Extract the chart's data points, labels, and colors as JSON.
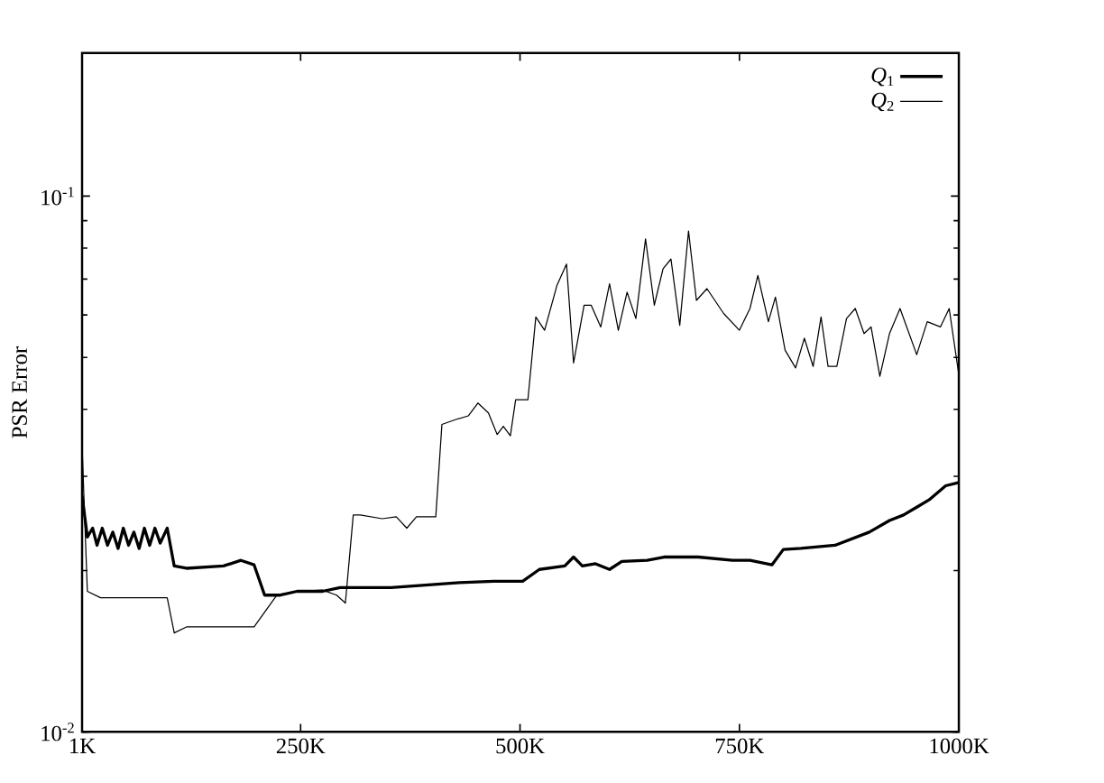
{
  "chart_data": {
    "type": "line",
    "ylabel": "PSR Error",
    "log": "y",
    "legend": "top right",
    "marker": "none",
    "line_style": "solid",
    "grid": false,
    "xlim": [
      1,
      1000
    ],
    "ylim": [
      0.01,
      0.185
    ],
    "xticks": [
      {
        "value": 1,
        "label": "1K"
      },
      {
        "value": 250,
        "label": "250K"
      },
      {
        "value": 500,
        "label": "500K"
      },
      {
        "value": 750,
        "label": "750K"
      },
      {
        "value": 1000,
        "label": "1000K"
      }
    ],
    "yticks": [
      {
        "value": 0.01,
        "label": "10$^{-2}$"
      },
      {
        "value": 0.1,
        "label": "10$^{-1}$"
      }
    ],
    "series": [
      {
        "name": "*Q*$_{1}$",
        "color": "#000000",
        "x": [
          1,
          7,
          13,
          18,
          24,
          30,
          36,
          42,
          48,
          54,
          60,
          66,
          72,
          78,
          84,
          90,
          98,
          106,
          120,
          162,
          182,
          197,
          209,
          227,
          246,
          275,
          295,
          314,
          353,
          392,
          431,
          470,
          503,
          522,
          551,
          561,
          571,
          586,
          602,
          616,
          645,
          664,
          703,
          742,
          762,
          787,
          800,
          820,
          859,
          898,
          921,
          937,
          966,
          985,
          1000
        ],
        "values": [
          0.0276,
          0.0231,
          0.024,
          0.0223,
          0.024,
          0.0223,
          0.0236,
          0.022,
          0.024,
          0.0223,
          0.0236,
          0.022,
          0.024,
          0.0223,
          0.024,
          0.0225,
          0.024,
          0.0204,
          0.0202,
          0.0204,
          0.0209,
          0.0205,
          0.018,
          0.018,
          0.0183,
          0.0183,
          0.0186,
          0.0186,
          0.0186,
          0.0188,
          0.019,
          0.0191,
          0.0191,
          0.0201,
          0.0204,
          0.0212,
          0.0204,
          0.0206,
          0.0201,
          0.0208,
          0.0209,
          0.0212,
          0.0212,
          0.0209,
          0.0209,
          0.0205,
          0.0219,
          0.022,
          0.0223,
          0.0236,
          0.0248,
          0.0254,
          0.0271,
          0.0288,
          0.0292
        ]
      },
      {
        "name": "*Q*$_{2}$",
        "color": "#000000",
        "x": [
          1,
          7,
          22,
          98,
          106,
          120,
          197,
          223,
          246,
          275,
          291,
          301,
          310,
          318,
          343,
          359,
          371,
          382,
          404,
          411,
          427,
          441,
          452,
          464,
          474,
          481,
          489,
          495,
          509,
          518,
          528,
          542,
          553,
          561,
          573,
          581,
          592,
          602,
          612,
          622,
          632,
          643,
          653,
          663,
          672,
          682,
          692,
          701,
          713,
          732,
          750,
          762,
          771,
          783,
          791,
          802,
          814,
          824,
          834,
          843,
          851,
          861,
          872,
          882,
          892,
          900,
          910,
          921,
          933,
          952,
          964,
          979,
          989,
          1000
        ],
        "values": [
          0.0342,
          0.0183,
          0.0178,
          0.0178,
          0.0153,
          0.0157,
          0.0157,
          0.018,
          0.0183,
          0.0184,
          0.018,
          0.0174,
          0.0254,
          0.0254,
          0.025,
          0.0252,
          0.024,
          0.0252,
          0.0252,
          0.0375,
          0.0383,
          0.0389,
          0.0411,
          0.0394,
          0.0359,
          0.0372,
          0.0357,
          0.0417,
          0.0417,
          0.0595,
          0.0562,
          0.0681,
          0.0747,
          0.0488,
          0.0626,
          0.0626,
          0.057,
          0.0686,
          0.0562,
          0.0662,
          0.0591,
          0.0832,
          0.0626,
          0.0732,
          0.0763,
          0.0574,
          0.0861,
          0.0639,
          0.0672,
          0.0604,
          0.0562,
          0.0617,
          0.0711,
          0.0583,
          0.0648,
          0.0516,
          0.0478,
          0.0543,
          0.0481,
          0.0595,
          0.0481,
          0.0481,
          0.0591,
          0.0617,
          0.0554,
          0.057,
          0.0461,
          0.0554,
          0.0617,
          0.0506,
          0.0583,
          0.057,
          0.0617,
          0.0464
        ]
      }
    ]
  }
}
